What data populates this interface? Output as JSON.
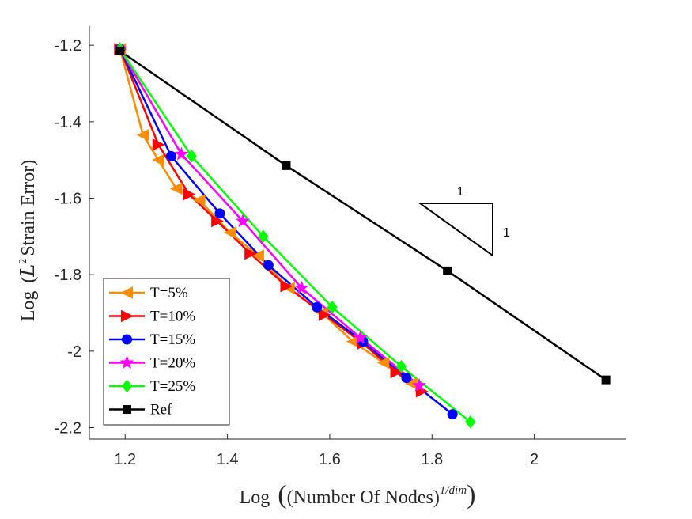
{
  "chart_data": {
    "type": "line",
    "title": "",
    "xlabel": {
      "prefix": "Log",
      "text": "(Number Of Nodes)",
      "superscript": "1/dim"
    },
    "ylabel": {
      "prefix": "Log",
      "script": "L",
      "superscript": "2",
      "text": "Strain Error"
    },
    "xlim": [
      1.13,
      2.18
    ],
    "ylim": [
      -2.23,
      -1.15
    ],
    "xticks": [
      1.2,
      1.4,
      1.6,
      1.8,
      2
    ],
    "xtick_labels": [
      "1.2",
      "1.4",
      "1.6",
      "1.8",
      "2"
    ],
    "yticks": [
      -1.2,
      -1.4,
      -1.6,
      -1.8,
      -2,
      -2.2
    ],
    "ytick_labels": [
      "-1.2",
      "-1.4",
      "-1.6",
      "-1.8",
      "-2",
      "-2.2"
    ],
    "grid": false,
    "legend_position": "bottom-left",
    "series": [
      {
        "name": "T=5%",
        "color": "#ff8c00",
        "marker": "triangle-left",
        "x": [
          1.19,
          1.235,
          1.265,
          1.3,
          1.345,
          1.405,
          1.46,
          1.52,
          1.585,
          1.645,
          1.705,
          1.76
        ],
        "y": [
          -1.21,
          -1.435,
          -1.5,
          -1.575,
          -1.605,
          -1.69,
          -1.75,
          -1.835,
          -1.9,
          -1.975,
          -2.03,
          -2.085
        ]
      },
      {
        "name": "T=10%",
        "color": "#ff0000",
        "marker": "triangle-right",
        "x": [
          1.19,
          1.265,
          1.325,
          1.38,
          1.445,
          1.515,
          1.59,
          1.665,
          1.73,
          1.78
        ],
        "y": [
          -1.21,
          -1.46,
          -1.59,
          -1.66,
          -1.745,
          -1.83,
          -1.905,
          -1.98,
          -2.055,
          -2.105
        ]
      },
      {
        "name": "T=15%",
        "color": "#0000ff",
        "marker": "circle",
        "x": [
          1.19,
          1.29,
          1.385,
          1.48,
          1.575,
          1.665,
          1.75,
          1.84
        ],
        "y": [
          -1.21,
          -1.49,
          -1.64,
          -1.775,
          -1.885,
          -1.975,
          -2.07,
          -2.165
        ]
      },
      {
        "name": "T=20%",
        "color": "#ff00ff",
        "marker": "star",
        "x": [
          1.19,
          1.31,
          1.43,
          1.545,
          1.66,
          1.775
        ],
        "y": [
          -1.21,
          -1.485,
          -1.66,
          -1.835,
          -1.965,
          -2.09
        ]
      },
      {
        "name": "T=25%",
        "color": "#00ff00",
        "marker": "diamond",
        "x": [
          1.19,
          1.33,
          1.47,
          1.605,
          1.74,
          1.875
        ],
        "y": [
          -1.21,
          -1.49,
          -1.7,
          -1.885,
          -2.04,
          -2.185
        ]
      },
      {
        "name": "Ref",
        "color": "#000000",
        "marker": "square",
        "x": [
          1.19,
          1.515,
          1.83,
          2.14
        ],
        "y": [
          -1.215,
          -1.515,
          -1.79,
          -2.075
        ]
      }
    ],
    "slope_triangle": {
      "top_label": "1",
      "side_label": "1"
    }
  }
}
